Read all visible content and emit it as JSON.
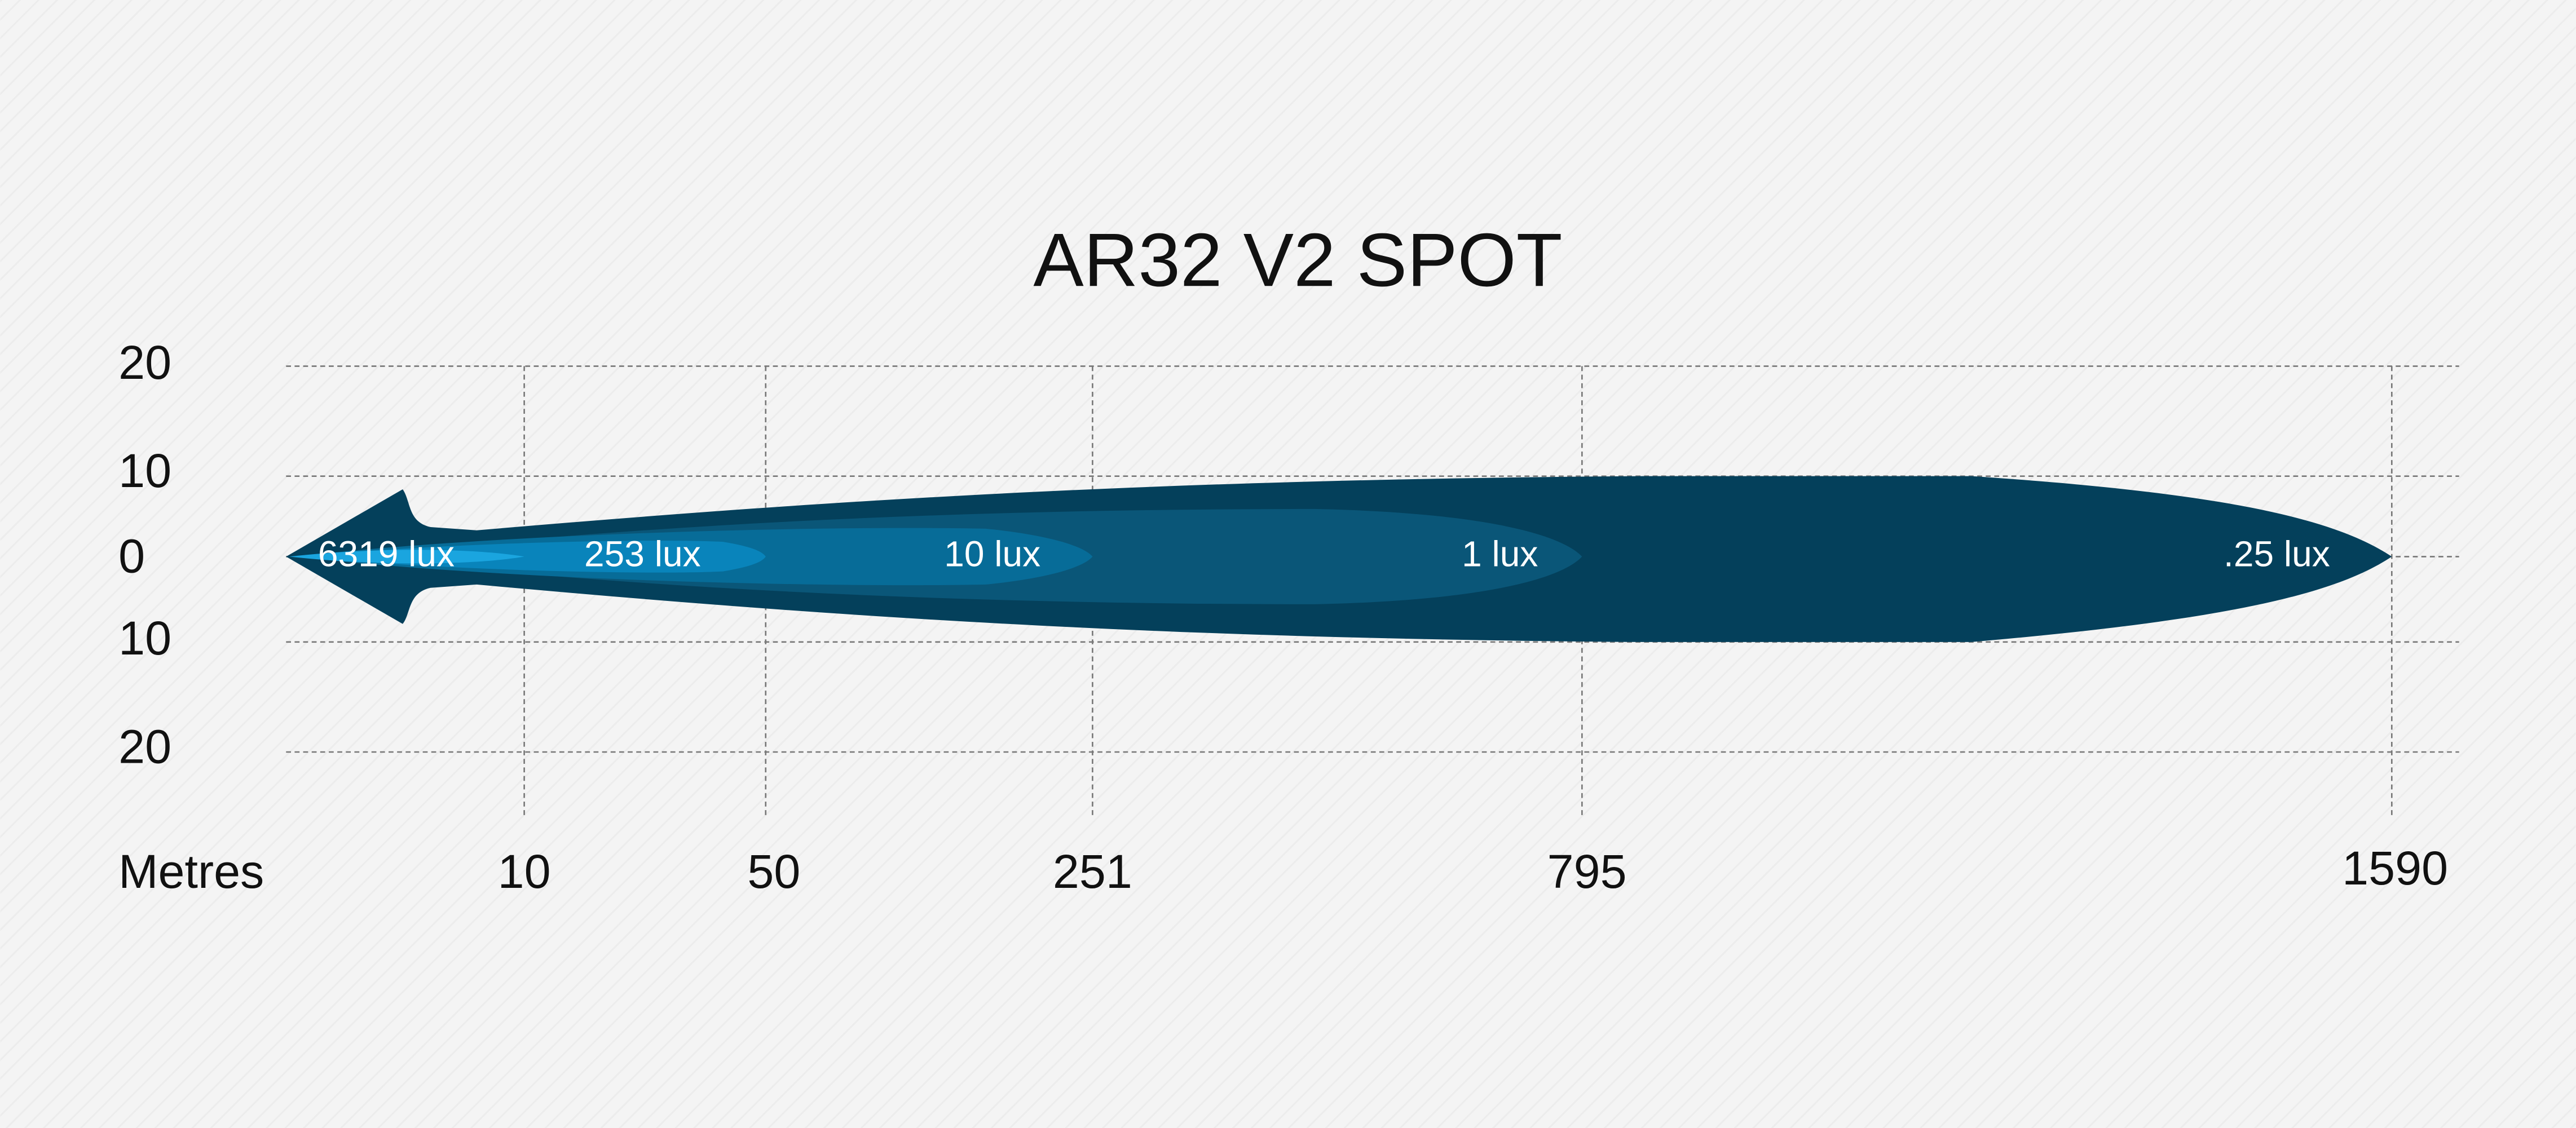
{
  "title": "AR32 V2 SPOT",
  "y_axis": {
    "labels": [
      "20",
      "10",
      "0",
      "10",
      "20"
    ]
  },
  "x_axis": {
    "title": "Metres",
    "labels": [
      "10",
      "50",
      "251",
      "795",
      "1590"
    ]
  },
  "zones": [
    {
      "label": "6319 lux"
    },
    {
      "label": "253 lux"
    },
    {
      "label": "10 lux"
    },
    {
      "label": "1 lux"
    },
    {
      "label": ".25 lux"
    }
  ]
}
